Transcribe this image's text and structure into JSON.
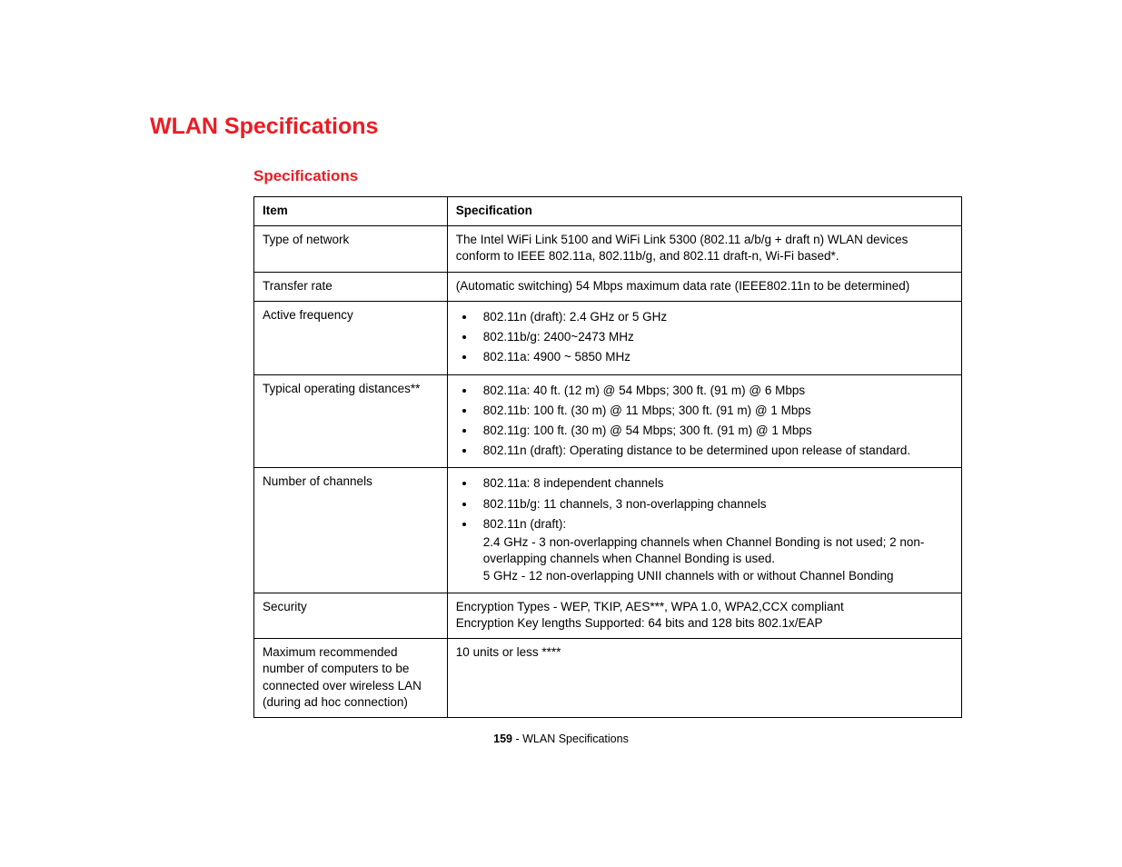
{
  "heading": "WLAN Specifications",
  "subheading": "Specifications",
  "table": {
    "headers": {
      "item": "Item",
      "spec": "Specification"
    },
    "rows": [
      {
        "item": "Type of network",
        "type": "text",
        "text": "The Intel WiFi Link 5100 and WiFi Link 5300 (802.11 a/b/g + draft n) WLAN devices conform to IEEE 802.11a, 802.11b/g, and 802.11 draft-n, Wi-Fi based*."
      },
      {
        "item": "Transfer rate",
        "type": "text",
        "text": "(Automatic switching) 54 Mbps maximum data rate (IEEE802.11n to be determined)"
      },
      {
        "item": "Active frequency",
        "type": "list",
        "items": [
          {
            "text": "802.11n (draft): 2.4 GHz or 5 GHz"
          },
          {
            "text": "802.11b/g: 2400~2473 MHz"
          },
          {
            "text": "802.11a: 4900 ~ 5850 MHz"
          }
        ]
      },
      {
        "item": "Typical operating distances**",
        "type": "list",
        "items": [
          {
            "text": "802.11a: 40 ft. (12 m) @ 54 Mbps; 300 ft. (91 m) @ 6 Mbps"
          },
          {
            "text": "802.11b: 100 ft. (30 m) @ 11 Mbps; 300 ft. (91 m) @ 1 Mbps"
          },
          {
            "text": "802.11g: 100 ft. (30 m) @ 54 Mbps; 300 ft. (91 m) @ 1 Mbps"
          },
          {
            "text": "802.11n (draft): Operating distance to be determined upon release of standard."
          }
        ]
      },
      {
        "item": "Number of channels",
        "type": "list",
        "items": [
          {
            "text": "802.11a: 8 independent channels"
          },
          {
            "text": "802.11b/g: 11 channels, 3 non-overlapping channels"
          },
          {
            "text": "802.11n (draft):",
            "extra": "2.4 GHz - 3 non-overlapping channels when Channel Bonding is not used; 2 non-overlapping channels when Channel Bonding is used.\n5 GHz - 12 non-overlapping UNII channels with or without Channel Bonding"
          }
        ]
      },
      {
        "item": "Security",
        "type": "text",
        "text": "Encryption Types - WEP, TKIP, AES***, WPA 1.0, WPA2,CCX compliant\nEncryption Key lengths Supported: 64 bits and 128 bits 802.1x/EAP"
      },
      {
        "item": "Maximum recommended number of computers to be connected over wireless LAN (during ad hoc connection)",
        "type": "text",
        "text": "10 units or less ****"
      }
    ]
  },
  "footer": {
    "page_number": "159",
    "sep": " - ",
    "title": "WLAN Specifications"
  }
}
